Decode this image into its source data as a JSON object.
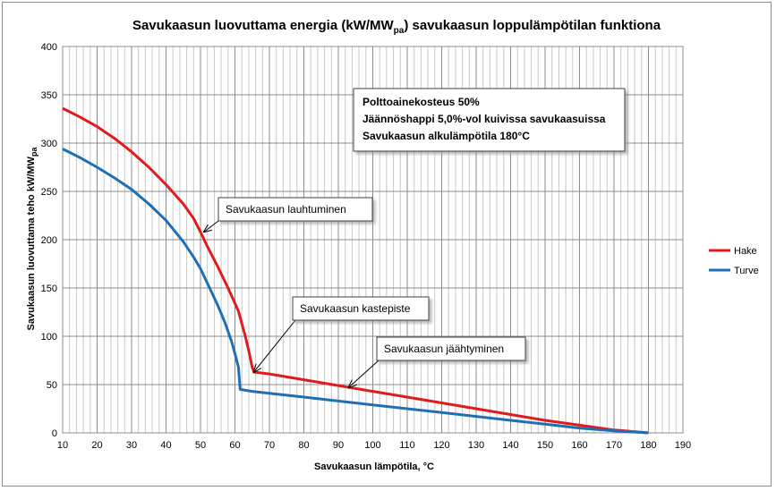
{
  "chart_data": {
    "type": "line",
    "title_main": "Savukaasun luovuttama energia (kW/MW",
    "title_sub": "pa",
    "title_rest": ") savukaasun loppulämpötilan funktiona",
    "xlabel": "Savukaasun lämpötila, °C",
    "ylabel_main": "Savukaasun luovuttama teho kW/MW",
    "ylabel_sub": "pa",
    "xlim": [
      10,
      190
    ],
    "ylim": [
      0,
      400
    ],
    "x_ticks": [
      "10",
      "20",
      "30",
      "40",
      "50",
      "60",
      "70",
      "80",
      "90",
      "100",
      "110",
      "120",
      "130",
      "140",
      "150",
      "160",
      "170",
      "180",
      "190"
    ],
    "y_ticks": [
      "0",
      "50",
      "100",
      "150",
      "200",
      "250",
      "300",
      "350",
      "400"
    ],
    "grid": true,
    "legend_position": "right",
    "series": [
      {
        "name": "Hake",
        "color": "#e31a1c",
        "points": [
          [
            10,
            336
          ],
          [
            15,
            327
          ],
          [
            20,
            317
          ],
          [
            25,
            305
          ],
          [
            30,
            291
          ],
          [
            35,
            275
          ],
          [
            40,
            257
          ],
          [
            45,
            237
          ],
          [
            48,
            222
          ],
          [
            50,
            208
          ],
          [
            52,
            193
          ],
          [
            55,
            172
          ],
          [
            58,
            150
          ],
          [
            61,
            126
          ],
          [
            63,
            100
          ],
          [
            64,
            85
          ],
          [
            65,
            68
          ],
          [
            65.5,
            63
          ],
          [
            70,
            61
          ],
          [
            80,
            55
          ],
          [
            90,
            49
          ],
          [
            100,
            43
          ],
          [
            110,
            37
          ],
          [
            120,
            31
          ],
          [
            130,
            25
          ],
          [
            140,
            19
          ],
          [
            150,
            13
          ],
          [
            160,
            8
          ],
          [
            170,
            3
          ],
          [
            180,
            0
          ]
        ]
      },
      {
        "name": "Turve",
        "color": "#1f6fb4",
        "points": [
          [
            10,
            294
          ],
          [
            15,
            285
          ],
          [
            20,
            275
          ],
          [
            25,
            264
          ],
          [
            30,
            252
          ],
          [
            35,
            237
          ],
          [
            40,
            220
          ],
          [
            45,
            198
          ],
          [
            48,
            182
          ],
          [
            50,
            170
          ],
          [
            52,
            155
          ],
          [
            55,
            132
          ],
          [
            57,
            115
          ],
          [
            59,
            95
          ],
          [
            60,
            82
          ],
          [
            61,
            68
          ],
          [
            61.3,
            55
          ],
          [
            61.5,
            45
          ],
          [
            65,
            43
          ],
          [
            70,
            41
          ],
          [
            80,
            37
          ],
          [
            90,
            33
          ],
          [
            100,
            29
          ],
          [
            110,
            25
          ],
          [
            120,
            21
          ],
          [
            130,
            17
          ],
          [
            140,
            13
          ],
          [
            150,
            9
          ],
          [
            160,
            5
          ],
          [
            170,
            2
          ],
          [
            180,
            0
          ]
        ]
      }
    ],
    "annotations": [
      {
        "label": "Savukaasun lauhtuminen",
        "x": 51,
        "y": 208
      },
      {
        "label": "Savukaasun kastepiste",
        "x": 65.5,
        "y": 63
      },
      {
        "label": "Savukaasun jäähtyminen",
        "x": 93,
        "y": 47
      }
    ],
    "info_box": [
      "Polttoainekosteus 50%",
      "Jäännöshappi 5,0%-vol kuivissa savukaasuissa",
      "Savukaasun alkulämpötila 180°C"
    ]
  }
}
